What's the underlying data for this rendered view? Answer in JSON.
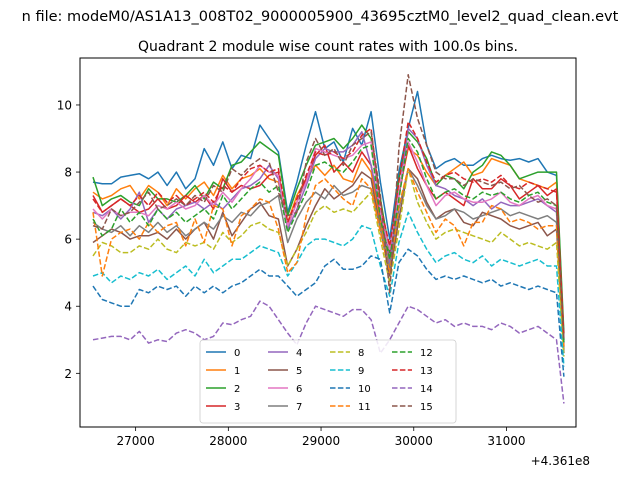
{
  "chart_data": {
    "type": "line",
    "suptitle": "n file: modeM0/AS1A13_008T02_9000005900_43695cztM0_level2_quad_clean.evt",
    "title": "Quadrant 2 module wise count rates with 100.0s bins.",
    "xlabel": "",
    "ylabel": "",
    "x_offset_label": "+4.361e8",
    "xlim": [
      26400,
      31750
    ],
    "ylim": [
      0.4,
      11.4
    ],
    "x_ticks": [
      27000,
      28000,
      29000,
      30000,
      31000
    ],
    "y_ticks": [
      2,
      4,
      6,
      8,
      10
    ],
    "x": [
      26540,
      26640,
      26740,
      26840,
      26940,
      27040,
      27140,
      27240,
      27340,
      27440,
      27540,
      27640,
      27740,
      27840,
      27940,
      28040,
      28140,
      28240,
      28340,
      28440,
      28540,
      28640,
      28740,
      28840,
      28940,
      29040,
      29140,
      29240,
      29340,
      29440,
      29540,
      29640,
      29740,
      29840,
      29940,
      30040,
      30140,
      30240,
      30340,
      30440,
      30540,
      30640,
      30740,
      30840,
      30940,
      31040,
      31140,
      31240,
      31340,
      31440,
      31540,
      31620
    ],
    "legend": {
      "location": "lower center",
      "columns": 4
    },
    "series": [
      {
        "name": "0",
        "color": "#1f77b4",
        "dashed": false,
        "values": [
          7.7,
          7.65,
          7.65,
          7.85,
          7.9,
          7.95,
          7.8,
          8.0,
          7.6,
          8.0,
          7.5,
          7.8,
          8.7,
          8.2,
          8.9,
          8.1,
          8.5,
          8.4,
          9.4,
          9.0,
          8.6,
          6.8,
          7.7,
          8.8,
          9.8,
          8.7,
          8.9,
          8.3,
          9.3,
          8.8,
          9.8,
          7.7,
          6.0,
          8.0,
          9.3,
          10.4,
          8.8,
          8.1,
          8.3,
          8.4,
          8.2,
          8.2,
          8.4,
          8.5,
          8.4,
          8.35,
          8.4,
          8.3,
          8.4,
          8.0,
          7.9,
          3.0
        ]
      },
      {
        "name": "1",
        "color": "#ff7f0e",
        "dashed": false,
        "values": [
          7.4,
          7.2,
          7.3,
          7.5,
          7.6,
          7.2,
          7.6,
          7.4,
          7.0,
          7.5,
          7.2,
          7.5,
          7.7,
          7.3,
          7.9,
          7.5,
          7.8,
          7.9,
          8.1,
          7.8,
          7.7,
          6.5,
          7.3,
          7.8,
          8.2,
          7.9,
          8.2,
          7.8,
          7.7,
          8.4,
          8.0,
          6.5,
          5.2,
          7.4,
          8.7,
          8.5,
          8.0,
          7.6,
          7.9,
          8.1,
          8.3,
          7.9,
          8.0,
          8.4,
          8.3,
          8.2,
          7.8,
          7.7,
          7.6,
          7.5,
          7.7,
          2.8
        ]
      },
      {
        "name": "2",
        "color": "#2ca02c",
        "dashed": false,
        "values": [
          7.85,
          7.0,
          7.2,
          7.3,
          7.1,
          7.0,
          7.5,
          7.2,
          7.2,
          7.1,
          7.3,
          7.6,
          7.2,
          7.7,
          7.5,
          8.2,
          8.3,
          8.6,
          8.9,
          8.7,
          8.5,
          6.7,
          7.5,
          8.2,
          8.8,
          8.9,
          9.0,
          8.7,
          9.0,
          9.4,
          9.0,
          7.2,
          5.6,
          7.8,
          9.2,
          8.9,
          8.4,
          7.6,
          7.9,
          7.8,
          7.5,
          8.0,
          8.2,
          8.6,
          8.5,
          8.2,
          7.8,
          7.9,
          8.0,
          8.0,
          8.0,
          3.2
        ]
      },
      {
        "name": "3",
        "color": "#d62728",
        "dashed": false,
        "values": [
          7.3,
          6.8,
          7.0,
          7.2,
          7.0,
          6.8,
          6.9,
          7.2,
          6.9,
          7.0,
          7.3,
          7.1,
          7.3,
          6.9,
          7.8,
          7.4,
          7.6,
          7.5,
          7.6,
          7.9,
          8.0,
          6.4,
          7.1,
          7.8,
          8.5,
          8.8,
          8.0,
          8.3,
          8.0,
          8.6,
          8.2,
          6.7,
          5.4,
          7.3,
          8.8,
          8.1,
          7.6,
          7.2,
          7.4,
          7.2,
          7.0,
          7.8,
          7.5,
          7.5,
          7.8,
          7.6,
          7.2,
          7.4,
          7.6,
          7.3,
          7.5,
          2.9
        ]
      },
      {
        "name": "4",
        "color": "#9467bd",
        "dashed": false,
        "values": [
          6.8,
          6.7,
          6.9,
          6.6,
          6.9,
          7.4,
          6.5,
          6.9,
          6.6,
          6.9,
          7.0,
          7.1,
          6.9,
          7.1,
          6.9,
          7.2,
          7.5,
          7.6,
          7.8,
          8.2,
          7.8,
          6.3,
          6.9,
          7.6,
          8.4,
          8.7,
          8.6,
          8.6,
          8.8,
          9.2,
          8.2,
          6.8,
          5.3,
          7.3,
          9.3,
          9.0,
          8.2,
          7.6,
          7.5,
          7.3,
          7.2,
          7.0,
          7.2,
          6.9,
          7.1,
          7.0,
          7.0,
          7.1,
          7.2,
          7.0,
          6.8,
          3.0
        ]
      },
      {
        "name": "5",
        "color": "#8c564b",
        "dashed": false,
        "values": [
          5.9,
          6.1,
          6.3,
          6.2,
          6.0,
          6.1,
          6.1,
          6.2,
          6.0,
          6.3,
          6.0,
          6.3,
          6.5,
          6.0,
          6.8,
          6.1,
          6.5,
          6.9,
          7.1,
          6.7,
          6.6,
          5.2,
          5.7,
          6.4,
          7.0,
          7.5,
          7.2,
          7.4,
          7.6,
          8.0,
          7.8,
          6.3,
          4.9,
          6.6,
          8.1,
          7.8,
          7.1,
          6.6,
          6.8,
          6.9,
          6.5,
          6.4,
          6.8,
          6.7,
          6.6,
          6.4,
          6.3,
          6.4,
          6.5,
          6.1,
          6.3,
          2.6
        ]
      },
      {
        "name": "6",
        "color": "#e377c2",
        "dashed": false,
        "values": [
          6.9,
          6.6,
          6.9,
          6.7,
          6.8,
          6.8,
          6.7,
          7.0,
          6.9,
          7.1,
          6.9,
          7.0,
          7.3,
          7.0,
          7.4,
          7.1,
          7.5,
          7.8,
          8.2,
          8.0,
          7.9,
          6.4,
          7.1,
          7.7,
          8.7,
          8.6,
          8.5,
          8.4,
          8.5,
          8.8,
          8.9,
          6.8,
          5.7,
          7.4,
          8.9,
          8.3,
          7.6,
          7.0,
          7.3,
          7.4,
          7.2,
          7.1,
          7.1,
          7.2,
          7.4,
          7.1,
          7.0,
          7.2,
          7.3,
          7.0,
          6.9,
          2.9
        ]
      },
      {
        "name": "7",
        "color": "#7f7f7f",
        "dashed": false,
        "values": [
          6.5,
          6.3,
          6.2,
          6.4,
          6.1,
          6.4,
          6.2,
          6.5,
          6.2,
          6.4,
          6.1,
          6.3,
          6.5,
          6.3,
          6.7,
          6.5,
          6.8,
          6.7,
          7.0,
          7.1,
          7.3,
          5.9,
          6.6,
          7.1,
          7.4,
          7.2,
          7.6,
          7.3,
          7.4,
          7.6,
          7.5,
          6.3,
          5.1,
          6.9,
          8.1,
          7.6,
          7.0,
          6.6,
          6.7,
          6.9,
          6.8,
          6.6,
          6.7,
          6.8,
          6.9,
          6.7,
          6.8,
          6.7,
          6.6,
          6.7,
          6.5,
          2.7
        ]
      },
      {
        "name": "8",
        "color": "#bcbd22",
        "dashed": true,
        "values": [
          5.5,
          5.9,
          5.8,
          5.6,
          5.6,
          5.8,
          5.7,
          6.0,
          5.7,
          5.6,
          5.9,
          5.8,
          5.9,
          5.7,
          6.2,
          5.9,
          6.1,
          6.4,
          6.5,
          6.3,
          6.2,
          5.2,
          5.7,
          6.2,
          6.8,
          7.0,
          6.8,
          6.9,
          6.8,
          7.1,
          7.4,
          6.0,
          4.7,
          6.3,
          8.1,
          7.1,
          6.5,
          6.0,
          6.2,
          6.3,
          6.2,
          6.1,
          6.0,
          5.9,
          6.2,
          6.0,
          5.8,
          5.9,
          5.8,
          5.7,
          5.9,
          2.5
        ]
      },
      {
        "name": "9",
        "color": "#17becf",
        "dashed": true,
        "values": [
          4.9,
          5.0,
          4.7,
          4.9,
          4.8,
          5.0,
          4.9,
          5.1,
          4.8,
          5.0,
          5.2,
          4.9,
          5.4,
          5.0,
          5.2,
          5.4,
          5.4,
          5.6,
          5.8,
          5.7,
          5.6,
          4.9,
          5.3,
          5.8,
          6.0,
          6.0,
          5.9,
          5.8,
          6.0,
          6.4,
          6.3,
          5.2,
          4.3,
          5.9,
          6.8,
          6.2,
          5.7,
          5.3,
          5.5,
          5.6,
          5.4,
          5.3,
          5.5,
          5.2,
          5.4,
          5.3,
          5.2,
          5.3,
          5.4,
          5.2,
          5.2,
          2.2
        ]
      },
      {
        "name": "10",
        "color": "#1f77b4",
        "dashed": true,
        "values": [
          4.6,
          4.2,
          4.1,
          4.0,
          4.0,
          4.5,
          4.4,
          4.6,
          4.5,
          4.6,
          4.3,
          4.6,
          4.4,
          4.6,
          4.4,
          4.6,
          4.7,
          4.9,
          5.1,
          4.9,
          4.9,
          4.6,
          4.3,
          4.5,
          4.7,
          5.2,
          5.4,
          5.1,
          5.1,
          5.2,
          5.5,
          5.4,
          3.8,
          5.3,
          5.7,
          5.5,
          5.1,
          4.8,
          4.9,
          4.8,
          4.9,
          4.8,
          4.7,
          4.8,
          4.6,
          4.7,
          4.6,
          4.5,
          4.6,
          4.5,
          4.4,
          1.9
        ]
      },
      {
        "name": "11",
        "color": "#ff7f0e",
        "dashed": true,
        "values": [
          6.8,
          4.9,
          6.0,
          6.2,
          6.3,
          6.0,
          6.5,
          6.2,
          6.4,
          6.5,
          5.8,
          6.6,
          5.9,
          7.0,
          6.9,
          5.8,
          6.7,
          6.9,
          7.2,
          7.1,
          6.3,
          5.0,
          5.3,
          6.7,
          7.6,
          7.8,
          7.5,
          7.2,
          7.0,
          7.8,
          7.5,
          6.2,
          5.0,
          7.0,
          8.1,
          7.4,
          6.8,
          6.2,
          6.6,
          6.4,
          5.8,
          6.5,
          6.5,
          7.0,
          6.9,
          6.5,
          6.6,
          6.5,
          6.3,
          6.4,
          6.4,
          2.8
        ]
      },
      {
        "name": "12",
        "color": "#2ca02c",
        "dashed": true,
        "values": [
          6.6,
          6.1,
          6.3,
          6.9,
          6.5,
          6.8,
          6.4,
          6.9,
          6.6,
          6.8,
          6.5,
          6.7,
          6.9,
          6.6,
          7.3,
          6.9,
          7.2,
          7.5,
          7.7,
          7.4,
          7.6,
          6.2,
          6.8,
          7.4,
          8.2,
          8.3,
          8.1,
          8.0,
          8.3,
          8.7,
          8.8,
          6.6,
          5.4,
          7.2,
          9.0,
          8.6,
          7.8,
          7.2,
          7.4,
          7.5,
          7.3,
          7.2,
          7.4,
          7.3,
          7.4,
          7.2,
          7.1,
          7.3,
          7.4,
          7.1,
          7.0,
          2.9
        ]
      },
      {
        "name": "13",
        "color": "#d62728",
        "dashed": true,
        "values": [
          7.2,
          6.8,
          7.0,
          7.2,
          7.0,
          7.3,
          7.0,
          7.4,
          7.1,
          7.3,
          7.0,
          7.2,
          7.4,
          7.1,
          7.6,
          7.4,
          7.8,
          8.1,
          8.2,
          8.0,
          8.1,
          6.5,
          7.2,
          7.9,
          8.6,
          8.5,
          8.6,
          8.4,
          8.6,
          9.1,
          9.3,
          7.0,
          5.8,
          7.7,
          9.5,
          9.0,
          8.3,
          7.7,
          7.9,
          8.0,
          7.8,
          7.7,
          7.8,
          7.7,
          7.9,
          7.6,
          7.5,
          7.7,
          7.6,
          7.5,
          7.4,
          3.1
        ]
      },
      {
        "name": "14",
        "color": "#9467bd",
        "dashed": true,
        "values": [
          3.0,
          3.05,
          3.1,
          3.1,
          3.0,
          3.25,
          2.9,
          3.0,
          2.95,
          3.2,
          3.3,
          3.2,
          3.0,
          3.1,
          3.5,
          3.45,
          3.6,
          3.7,
          4.15,
          4.0,
          3.6,
          3.2,
          2.85,
          3.5,
          4.0,
          3.9,
          3.8,
          3.7,
          3.9,
          3.9,
          3.6,
          2.6,
          3.0,
          3.5,
          4.0,
          3.9,
          3.7,
          3.5,
          3.6,
          3.4,
          3.5,
          3.4,
          3.4,
          3.3,
          3.5,
          3.4,
          3.2,
          3.3,
          3.4,
          3.2,
          3.0,
          1.1
        ]
      },
      {
        "name": "15",
        "color": "#8c564b",
        "dashed": true,
        "values": [
          6.4,
          6.3,
          6.9,
          6.7,
          6.8,
          7.1,
          7.4,
          6.9,
          7.0,
          7.2,
          7.0,
          7.3,
          7.1,
          7.6,
          7.4,
          8.1,
          7.9,
          8.2,
          8.4,
          8.3,
          7.4,
          6.7,
          6.8,
          8.3,
          9.0,
          8.5,
          8.7,
          8.2,
          8.8,
          9.0,
          9.2,
          7.3,
          4.4,
          8.7,
          10.9,
          9.6,
          8.8,
          8.0,
          7.8,
          7.8,
          7.6,
          7.8,
          7.7,
          7.6,
          7.7,
          7.5,
          7.6,
          7.3,
          7.1,
          7.2,
          7.0,
          3.0
        ]
      }
    ]
  }
}
